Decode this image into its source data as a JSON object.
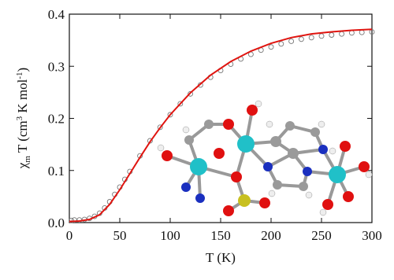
{
  "chart_data": {
    "type": "scatter-fit",
    "xlabel": "T (K)",
    "ylabel_parts": [
      "χ",
      "m",
      " T (cm",
      "3",
      " K mol",
      "-1",
      ")"
    ],
    "xlim": [
      0,
      300
    ],
    "xticks": [
      0,
      50,
      100,
      150,
      200,
      250,
      300
    ],
    "ylim": [
      0,
      0.4
    ],
    "yticks": [
      {
        "value": 0,
        "label": "0.0"
      },
      0.1,
      0.2,
      0.3,
      0.4
    ],
    "series": [
      {
        "kind": "scatter",
        "marker": "open-circle",
        "color": "#777777",
        "x": [
          2,
          5,
          10,
          15,
          20,
          25,
          30,
          35,
          40,
          45,
          50,
          55,
          60,
          70,
          80,
          90,
          100,
          110,
          120,
          130,
          140,
          150,
          160,
          170,
          180,
          190,
          200,
          210,
          220,
          230,
          240,
          250,
          260,
          270,
          280,
          290,
          300
        ],
        "values": [
          0.004,
          0.005,
          0.005,
          0.006,
          0.008,
          0.012,
          0.018,
          0.028,
          0.04,
          0.054,
          0.068,
          0.083,
          0.098,
          0.128,
          0.157,
          0.183,
          0.207,
          0.228,
          0.247,
          0.264,
          0.279,
          0.292,
          0.304,
          0.314,
          0.323,
          0.331,
          0.337,
          0.343,
          0.348,
          0.352,
          0.355,
          0.358,
          0.36,
          0.362,
          0.364,
          0.365,
          0.366
        ]
      },
      {
        "kind": "line",
        "color": "#e0140f",
        "x": [
          0,
          10,
          20,
          30,
          40,
          50,
          60,
          70,
          80,
          90,
          100,
          120,
          140,
          160,
          180,
          200,
          220,
          240,
          260,
          280,
          300
        ],
        "values": [
          0.002,
          0.003,
          0.006,
          0.015,
          0.035,
          0.063,
          0.094,
          0.125,
          0.155,
          0.182,
          0.207,
          0.249,
          0.283,
          0.309,
          0.329,
          0.344,
          0.355,
          0.362,
          0.366,
          0.369,
          0.371
        ]
      }
    ]
  }
}
